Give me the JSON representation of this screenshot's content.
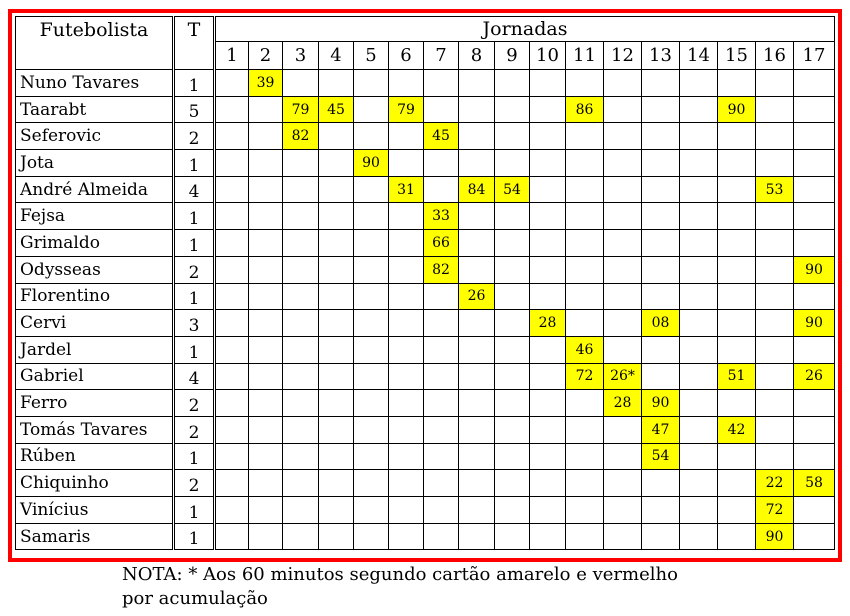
{
  "table": {
    "col_player": "Futebolista",
    "col_total": "T",
    "col_rounds": "Jornadas",
    "rounds": [
      "1",
      "2",
      "3",
      "4",
      "5",
      "6",
      "7",
      "8",
      "9",
      "10",
      "11",
      "12",
      "13",
      "14",
      "15",
      "16",
      "17"
    ],
    "card_color": "#ffff00",
    "frame_color": "#ff0000",
    "players": [
      {
        "name": "Nuno Tavares",
        "total": "1",
        "cards": {
          "2": "39"
        }
      },
      {
        "name": "Taarabt",
        "total": "5",
        "cards": {
          "3": "79",
          "4": "45",
          "6": "79",
          "11": "86",
          "15": "90"
        }
      },
      {
        "name": "Seferovic",
        "total": "2",
        "cards": {
          "3": "82",
          "7": "45"
        }
      },
      {
        "name": "Jota",
        "total": "1",
        "cards": {
          "5": "90"
        }
      },
      {
        "name": "André Almeida",
        "total": "4",
        "cards": {
          "6": "31",
          "8": "84",
          "9": "54",
          "16": "53"
        }
      },
      {
        "name": "Fejsa",
        "total": "1",
        "cards": {
          "7": "33"
        }
      },
      {
        "name": "Grimaldo",
        "total": "1",
        "cards": {
          "7": "66"
        }
      },
      {
        "name": "Odysseas",
        "total": "2",
        "cards": {
          "7": "82",
          "17": "90"
        }
      },
      {
        "name": "Florentino",
        "total": "1",
        "cards": {
          "8": "26"
        }
      },
      {
        "name": "Cervi",
        "total": "3",
        "cards": {
          "10": "28",
          "13": "08",
          "17": "90"
        }
      },
      {
        "name": "Jardel",
        "total": "1",
        "cards": {
          "11": "46"
        }
      },
      {
        "name": "Gabriel",
        "total": "4",
        "cards": {
          "11": "72",
          "12": "26*",
          "15": "51",
          "17": "26"
        }
      },
      {
        "name": "Ferro",
        "total": "2",
        "cards": {
          "12": "28",
          "13": "90"
        }
      },
      {
        "name": "Tomás Tavares",
        "total": "2",
        "cards": {
          "13": "47",
          "15": "42"
        }
      },
      {
        "name": "Rúben",
        "total": "1",
        "cards": {
          "13": "54"
        }
      },
      {
        "name": "Chiquinho",
        "total": "2",
        "cards": {
          "16": "22",
          "17": "58"
        }
      },
      {
        "name": "Vinícius",
        "total": "1",
        "cards": {
          "16": "72"
        }
      },
      {
        "name": "Samaris",
        "total": "1",
        "cards": {
          "16": "90"
        }
      }
    ]
  },
  "note": "NOTA: * Aos 60 minutos segundo cartão amarelo e vermelho por acumulação"
}
